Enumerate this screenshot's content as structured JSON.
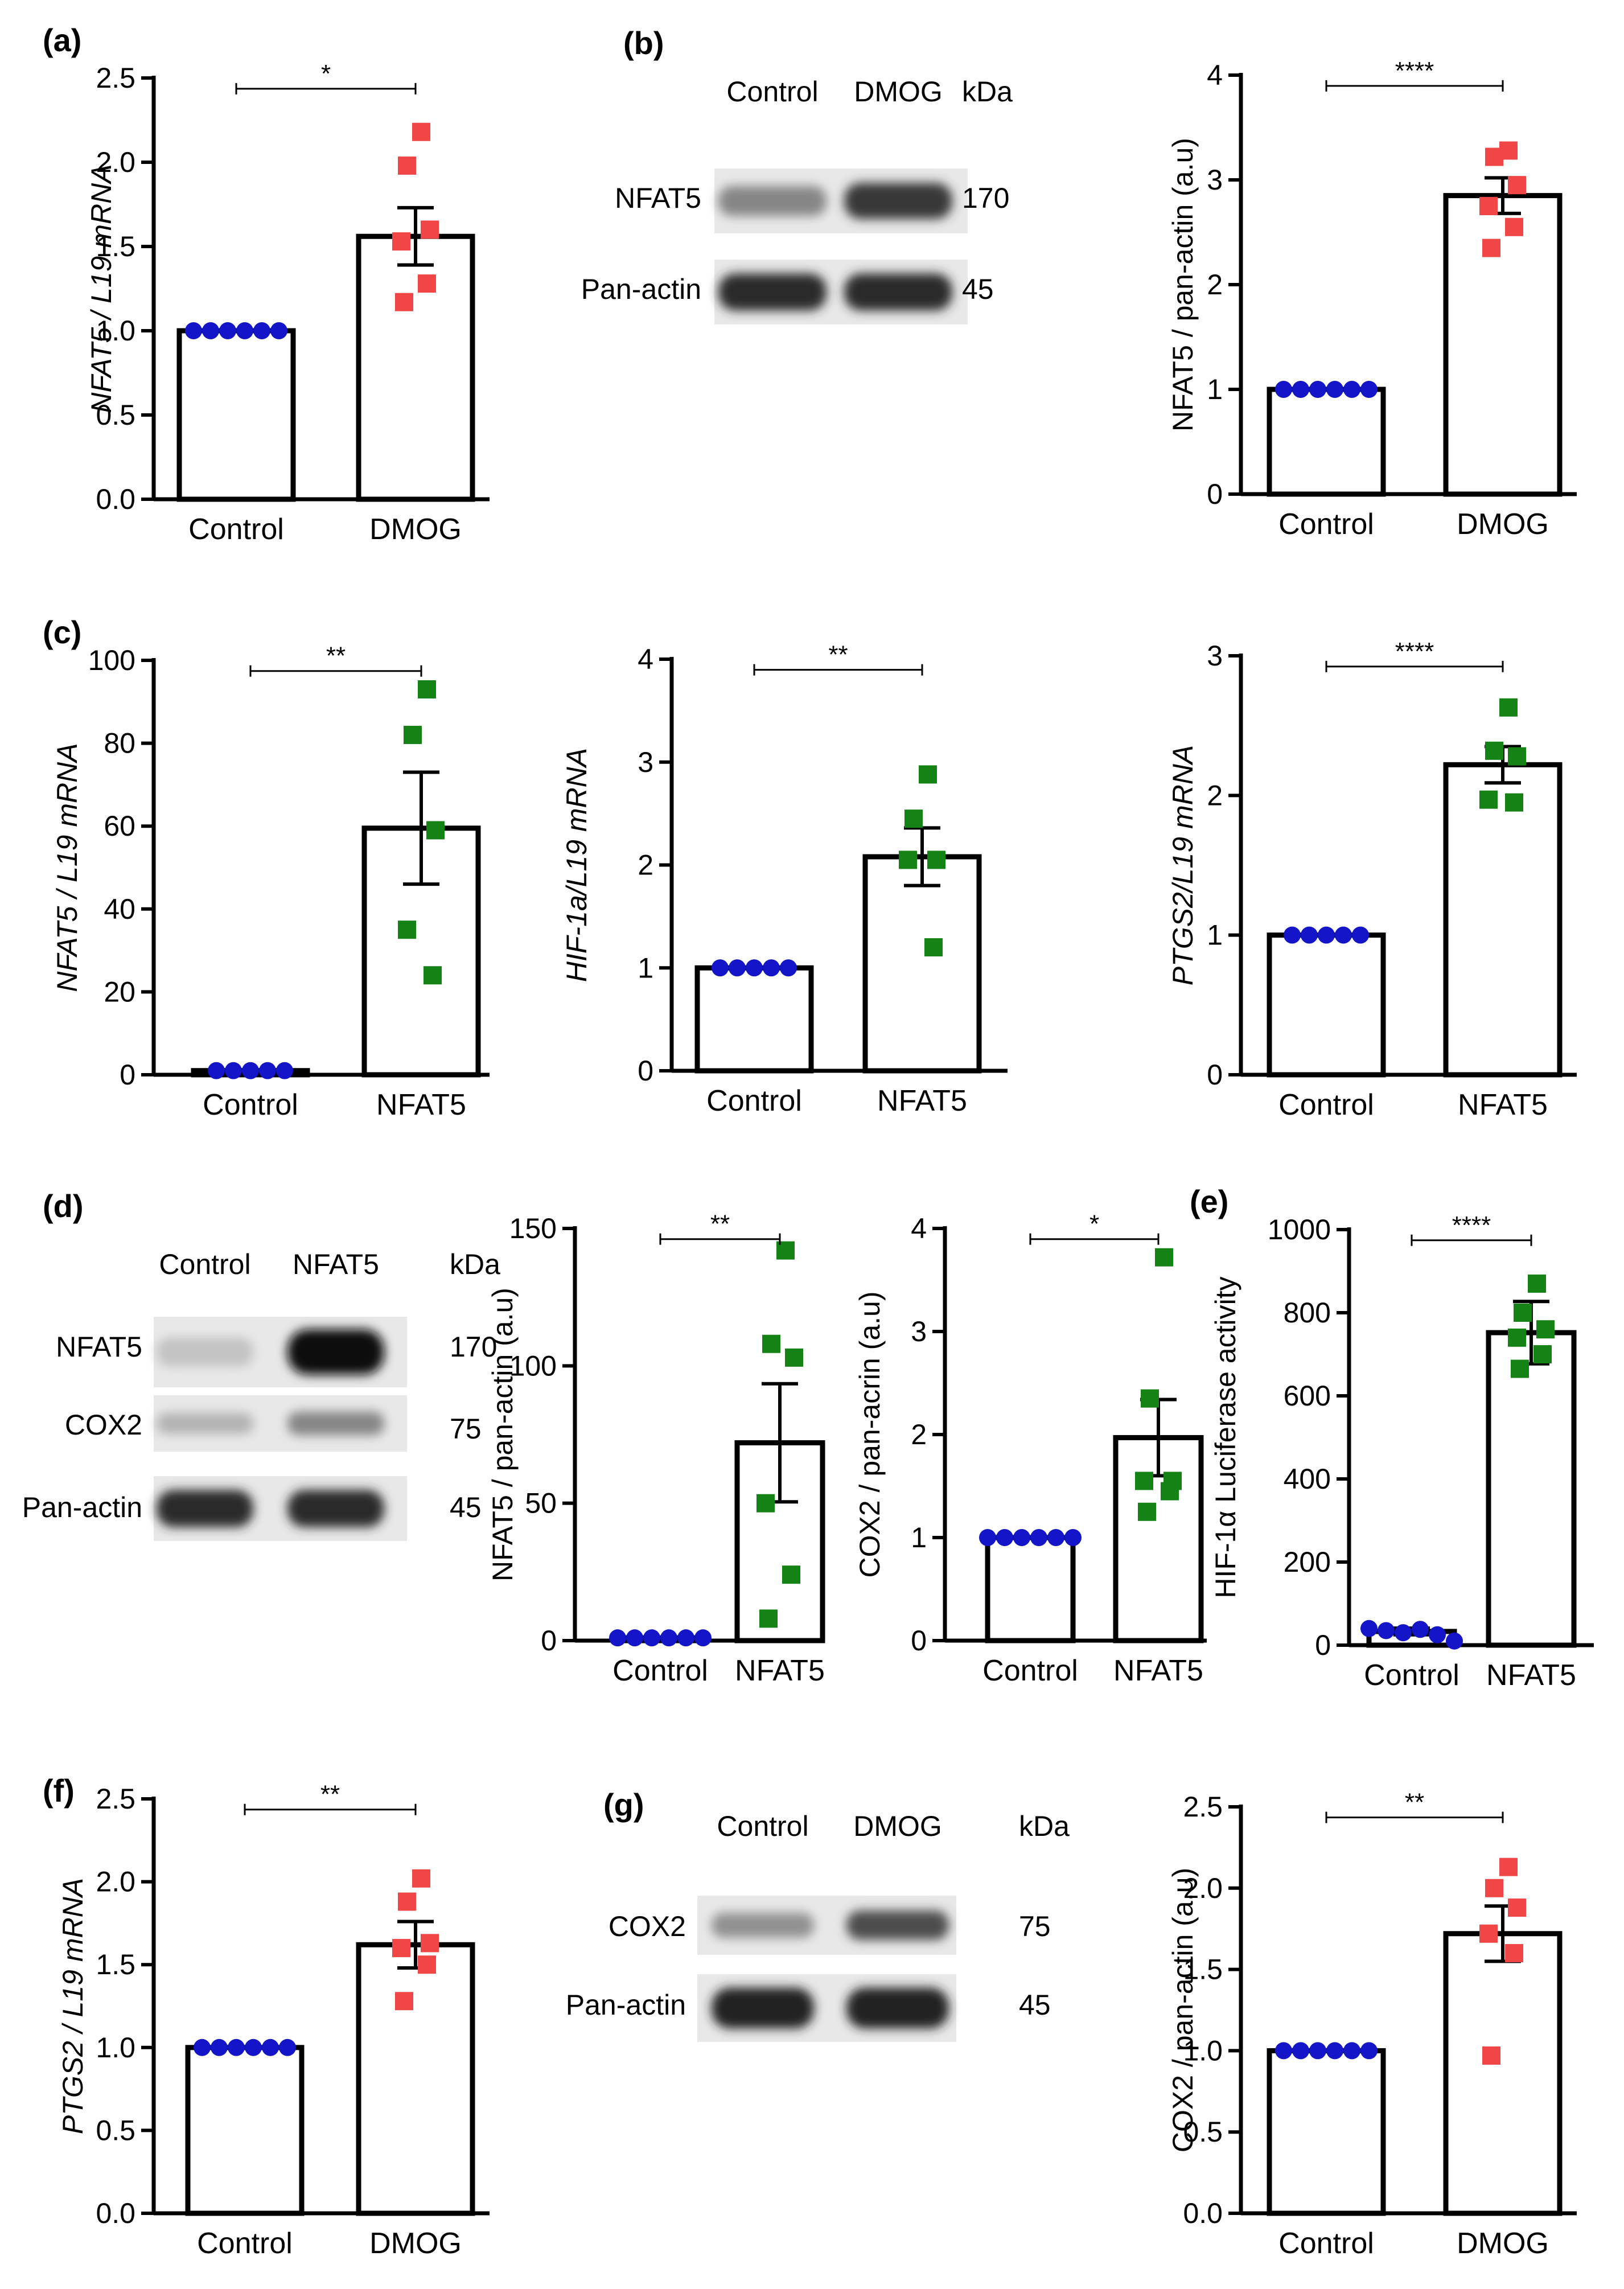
{
  "chart_data": [
    {
      "id": "a",
      "panel_label": "(a)",
      "type": "bar",
      "ylabel": "NFAT5 / L19 mRNA",
      "ylabel_italic": true,
      "categories": [
        "Control",
        "DMOG"
      ],
      "ylim": [
        0,
        2.5
      ],
      "yticks": [
        "0.0",
        "0.5",
        "1.0",
        "1.5",
        "2.0",
        "2.5"
      ],
      "ytick_values": [
        0,
        0.5,
        1,
        1.5,
        2,
        2.5
      ],
      "bars": [
        {
          "category": "Control",
          "mean": 1.0,
          "sem": 0,
          "points": [
            1,
            1,
            1,
            1,
            1,
            1
          ],
          "marker": "circle",
          "color": "#1414c8"
        },
        {
          "category": "DMOG",
          "mean": 1.56,
          "sem": 0.17,
          "points": [
            2.18,
            1.98,
            1.6,
            1.53,
            1.28,
            1.17
          ],
          "marker": "square",
          "color": "#f04646"
        }
      ],
      "significance": "*"
    },
    {
      "id": "b_chart",
      "panel_label": "",
      "type": "bar",
      "ylabel": "NFAT5 / pan-actin (a.u)",
      "ylabel_italic": false,
      "categories": [
        "Control",
        "DMOG"
      ],
      "ylim": [
        0,
        4
      ],
      "yticks": [
        "0",
        "1",
        "2",
        "3",
        "4"
      ],
      "ytick_values": [
        0,
        1,
        2,
        3,
        4
      ],
      "bars": [
        {
          "category": "Control",
          "mean": 1.0,
          "sem": 0,
          "points": [
            1,
            1,
            1,
            1,
            1,
            1
          ],
          "marker": "circle",
          "color": "#1414c8"
        },
        {
          "category": "DMOG",
          "mean": 2.85,
          "sem": 0.17,
          "points": [
            3.28,
            3.22,
            2.95,
            2.75,
            2.55,
            2.35
          ],
          "marker": "square",
          "color": "#f04646"
        }
      ],
      "significance": "****"
    },
    {
      "id": "c1",
      "panel_label": "(c)",
      "type": "bar",
      "ylabel": "NFAT5 / L19 mRNA",
      "ylabel_italic": true,
      "categories": [
        "Control",
        "NFAT5"
      ],
      "ylim": [
        0,
        100
      ],
      "yticks": [
        "0",
        "20",
        "40",
        "60",
        "80",
        "100"
      ],
      "ytick_values": [
        0,
        20,
        40,
        60,
        80,
        100
      ],
      "bars": [
        {
          "category": "Control",
          "mean": 1.0,
          "sem": 0,
          "points": [
            1,
            1,
            1,
            1,
            1
          ],
          "marker": "circle",
          "color": "#1414c8"
        },
        {
          "category": "NFAT5",
          "mean": 59.5,
          "sem": 13.5,
          "points": [
            93,
            82,
            59,
            35,
            24
          ],
          "marker": "square",
          "color": "#148214"
        }
      ],
      "significance": "**"
    },
    {
      "id": "c2",
      "panel_label": "",
      "type": "bar",
      "ylabel": "HIF-1a/L19 mRNA",
      "ylabel_italic": true,
      "categories": [
        "Control",
        "NFAT5"
      ],
      "ylim": [
        0,
        4
      ],
      "yticks": [
        "0",
        "1",
        "2",
        "3",
        "4"
      ],
      "ytick_values": [
        0,
        1,
        2,
        3,
        4
      ],
      "bars": [
        {
          "category": "Control",
          "mean": 1.0,
          "sem": 0,
          "points": [
            1,
            1,
            1,
            1,
            1
          ],
          "marker": "circle",
          "color": "#1414c8"
        },
        {
          "category": "NFAT5",
          "mean": 2.08,
          "sem": 0.28,
          "points": [
            2.88,
            2.45,
            2.05,
            2.05,
            1.2
          ],
          "marker": "square",
          "color": "#148214"
        }
      ],
      "significance": "**"
    },
    {
      "id": "c3",
      "panel_label": "",
      "type": "bar",
      "ylabel": "PTGS2/L19 mRNA",
      "ylabel_italic": true,
      "categories": [
        "Control",
        "NFAT5"
      ],
      "ylim": [
        0,
        3
      ],
      "yticks": [
        "0",
        "1",
        "2",
        "3"
      ],
      "ytick_values": [
        0,
        1,
        2,
        3
      ],
      "bars": [
        {
          "category": "Control",
          "mean": 1.0,
          "sem": 0,
          "points": [
            1,
            1,
            1,
            1,
            1
          ],
          "marker": "circle",
          "color": "#1414c8"
        },
        {
          "category": "NFAT5",
          "mean": 2.22,
          "sem": 0.13,
          "points": [
            2.63,
            2.32,
            2.28,
            1.97,
            1.95
          ],
          "marker": "square",
          "color": "#148214"
        }
      ],
      "significance": "****"
    },
    {
      "id": "d1",
      "panel_label": "",
      "type": "bar",
      "ylabel": "NFAT5 / pan-actin (a.u)",
      "ylabel_italic": false,
      "categories": [
        "Control",
        "NFAT5"
      ],
      "ylim": [
        0,
        150
      ],
      "yticks": [
        "0",
        "50",
        "100",
        "150"
      ],
      "ytick_values": [
        0,
        50,
        100,
        150
      ],
      "bars": [
        {
          "category": "Control",
          "mean": 1.0,
          "sem": 0,
          "points": [
            1,
            1,
            1,
            1,
            1,
            1
          ],
          "marker": "circle",
          "color": "#1414c8"
        },
        {
          "category": "NFAT5",
          "mean": 72,
          "sem": 21.5,
          "points": [
            142,
            108,
            103,
            50,
            24,
            8
          ],
          "marker": "square",
          "color": "#148214"
        }
      ],
      "significance": "**"
    },
    {
      "id": "d2",
      "panel_label": "",
      "type": "bar",
      "ylabel": "COX2 / pan-acrin (a.u)",
      "ylabel_italic": false,
      "categories": [
        "Control",
        "NFAT5"
      ],
      "ylim": [
        0,
        4
      ],
      "yticks": [
        "0",
        "1",
        "2",
        "3",
        "4"
      ],
      "ytick_values": [
        0,
        1,
        2,
        3,
        4
      ],
      "bars": [
        {
          "category": "Control",
          "mean": 1.0,
          "sem": 0,
          "points": [
            1,
            1,
            1,
            1,
            1,
            1
          ],
          "marker": "circle",
          "color": "#1414c8"
        },
        {
          "category": "NFAT5",
          "mean": 1.97,
          "sem": 0.37,
          "points": [
            3.72,
            2.35,
            1.55,
            1.55,
            1.45,
            1.25
          ],
          "marker": "square",
          "color": "#148214"
        }
      ],
      "significance": "*"
    },
    {
      "id": "e",
      "panel_label": "(e)",
      "type": "bar",
      "ylabel": "HIF-1α Luciferase activity",
      "ylabel_italic": false,
      "categories": [
        "Control",
        "NFAT5"
      ],
      "ylim": [
        0,
        1000
      ],
      "yticks": [
        "0",
        "200",
        "400",
        "600",
        "800",
        "1000"
      ],
      "ytick_values": [
        0,
        200,
        400,
        600,
        800,
        1000
      ],
      "bars": [
        {
          "category": "Control",
          "mean": 33,
          "sem": 8,
          "points": [
            40,
            35,
            30,
            38,
            25,
            10
          ],
          "marker": "circle",
          "color": "#1414c8"
        },
        {
          "category": "NFAT5",
          "mean": 752,
          "sem": 75,
          "points": [
            870,
            800,
            760,
            740,
            700,
            665
          ],
          "marker": "square",
          "color": "#148214"
        }
      ],
      "significance": "****"
    },
    {
      "id": "f",
      "panel_label": "(f)",
      "type": "bar",
      "ylabel": "PTGS2 / L19 mRNA",
      "ylabel_italic": true,
      "categories": [
        "Control",
        "DMOG"
      ],
      "ylim": [
        0,
        2.5
      ],
      "yticks": [
        "0.0",
        "0.5",
        "1.0",
        "1.5",
        "2.0",
        "2.5"
      ],
      "ytick_values": [
        0,
        0.5,
        1,
        1.5,
        2,
        2.5
      ],
      "bars": [
        {
          "category": "Control",
          "mean": 1.0,
          "sem": 0,
          "points": [
            1,
            1,
            1,
            1,
            1,
            1
          ],
          "marker": "circle",
          "color": "#1414c8"
        },
        {
          "category": "DMOG",
          "mean": 1.62,
          "sem": 0.14,
          "points": [
            2.02,
            1.88,
            1.63,
            1.6,
            1.5,
            1.28
          ],
          "marker": "square",
          "color": "#f04646"
        }
      ],
      "significance": "**"
    },
    {
      "id": "g_chart",
      "panel_label": "",
      "type": "bar",
      "ylabel": "COX2 / pan-actin (a.u)",
      "ylabel_italic": false,
      "categories": [
        "Control",
        "DMOG"
      ],
      "ylim": [
        0,
        2.5
      ],
      "yticks": [
        "0.0",
        "0.5",
        "1.0",
        "1.5",
        "2.0",
        "2.5"
      ],
      "ytick_values": [
        0,
        0.5,
        1,
        1.5,
        2,
        2.5
      ],
      "bars": [
        {
          "category": "Control",
          "mean": 1.0,
          "sem": 0,
          "points": [
            1,
            1,
            1,
            1,
            1,
            1
          ],
          "marker": "circle",
          "color": "#1414c8"
        },
        {
          "category": "DMOG",
          "mean": 1.72,
          "sem": 0.17,
          "points": [
            2.13,
            2.0,
            1.88,
            1.72,
            1.6,
            0.97
          ],
          "marker": "square",
          "color": "#f04646"
        }
      ],
      "significance": "**"
    }
  ],
  "blots": [
    {
      "id": "b",
      "panel_label": "(b)",
      "columns": [
        "Control",
        "DMOG"
      ],
      "kda_header": "kDa",
      "rows": [
        {
          "label": "NFAT5",
          "kda": "170",
          "intensity": [
            0.45,
            0.8
          ]
        },
        {
          "label": "Pan-actin",
          "kda": "45",
          "intensity": [
            0.85,
            0.85
          ]
        }
      ]
    },
    {
      "id": "d",
      "panel_label": "(d)",
      "columns": [
        "Control",
        "NFAT5"
      ],
      "kda_header": "kDa",
      "rows": [
        {
          "label": "NFAT5",
          "kda": "170",
          "intensity": [
            0.18,
            1.0
          ]
        },
        {
          "label": "COX2",
          "kda": "75",
          "intensity": [
            0.25,
            0.45
          ]
        },
        {
          "label": "Pan-actin",
          "kda": "45",
          "intensity": [
            0.85,
            0.85
          ]
        }
      ]
    },
    {
      "id": "g",
      "panel_label": "(g)",
      "columns": [
        "Control",
        "DMOG"
      ],
      "kda_header": "kDa",
      "rows": [
        {
          "label": "COX2",
          "kda": "75",
          "intensity": [
            0.4,
            0.7
          ]
        },
        {
          "label": "Pan-actin",
          "kda": "45",
          "intensity": [
            0.9,
            0.9
          ]
        }
      ]
    }
  ],
  "colors": {
    "axis": "#000000",
    "control": "#1414c8",
    "dmog": "#f04646",
    "nfat5": "#148214"
  }
}
